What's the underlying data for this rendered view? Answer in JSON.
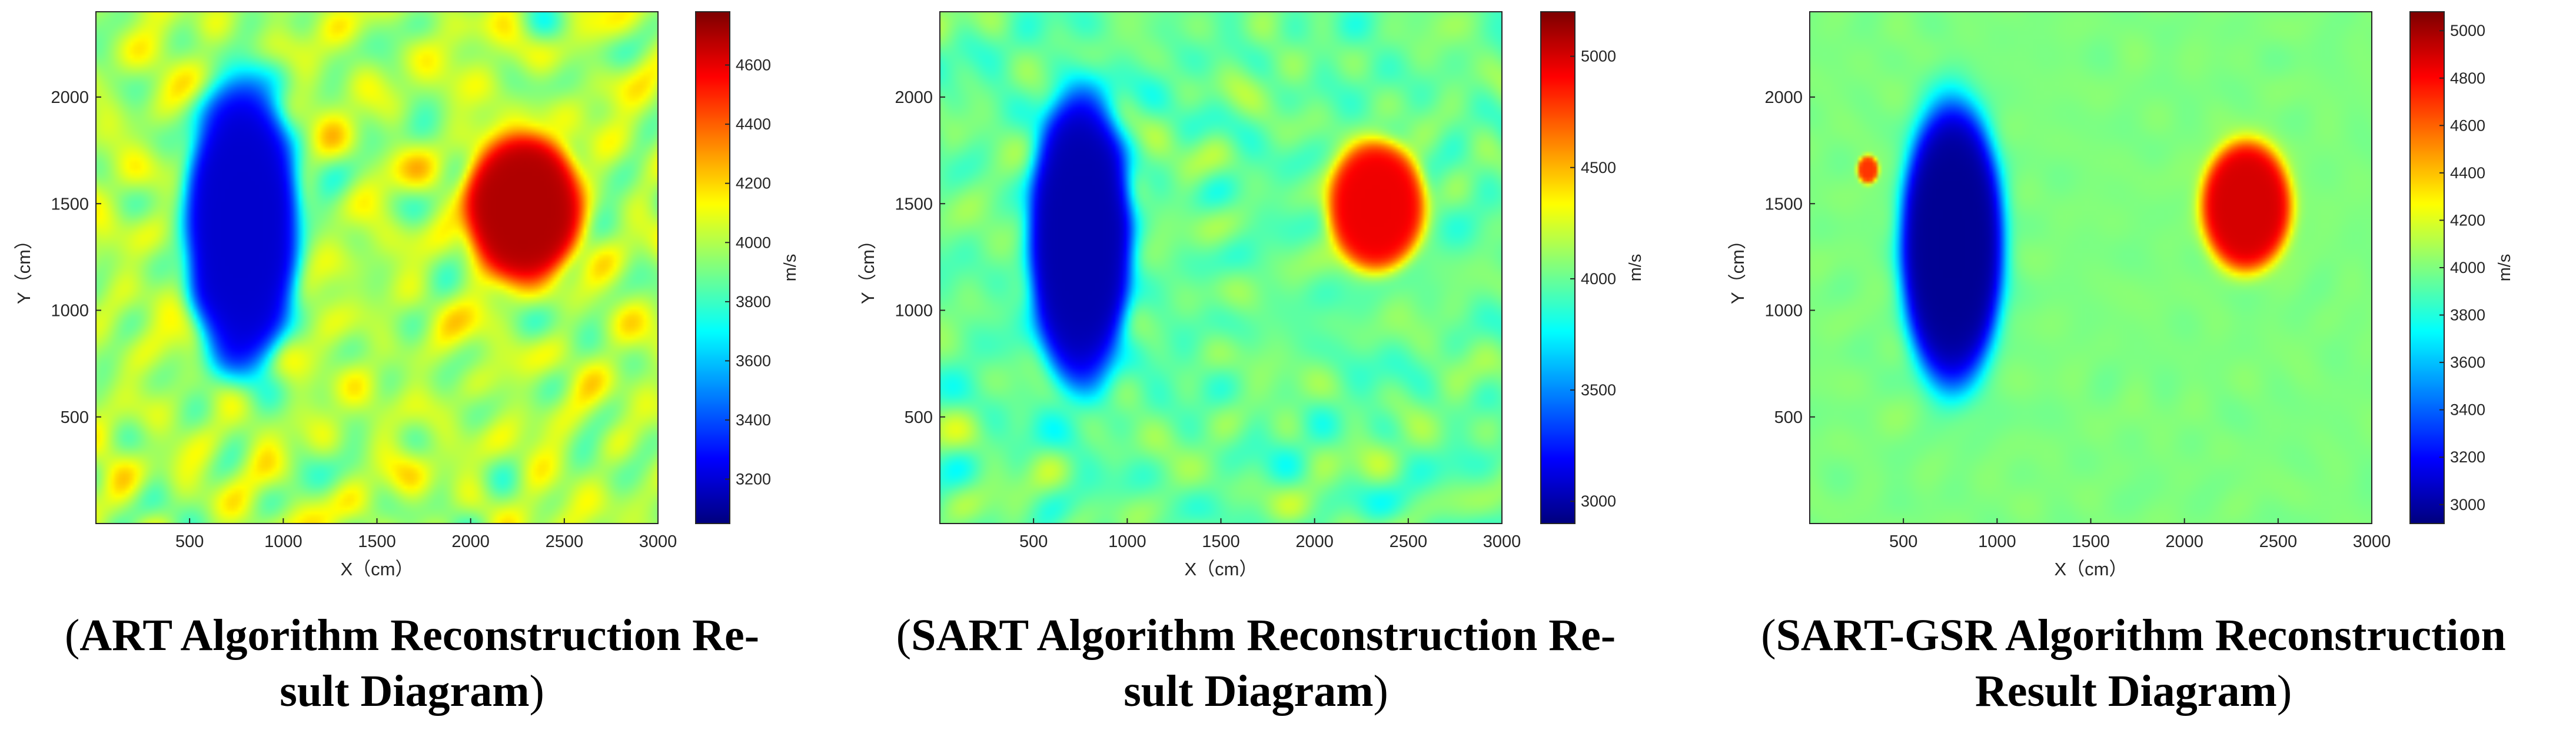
{
  "chart_data": [
    {
      "type": "heatmap",
      "caption": [
        "(ART Algorithm Reconstruction Re-",
        "sult Diagram)"
      ],
      "xlabel": "X（cm）",
      "ylabel": "Y（cm）",
      "xlim": [
        0,
        3000
      ],
      "ylim": [
        0,
        2400
      ],
      "xticks": [
        500,
        1000,
        1500,
        2000,
        2500,
        3000
      ],
      "yticks": [
        500,
        1000,
        1500,
        2000
      ],
      "colorbar": {
        "unit": "m/s",
        "range": [
          3050,
          4780
        ],
        "ticks": [
          3200,
          3400,
          3600,
          3800,
          4000,
          4200,
          4400,
          4600
        ]
      },
      "background": 4000,
      "noise": 260,
      "features": [
        {
          "label": "low-velocity anomaly",
          "cx": 780,
          "cy": 1400,
          "rx": 330,
          "ry": 760,
          "value": 3180
        },
        {
          "label": "high-velocity anomaly",
          "cx": 2280,
          "cy": 1480,
          "rx": 340,
          "ry": 380,
          "value": 4700
        }
      ]
    },
    {
      "type": "heatmap",
      "caption": [
        "(SART Algorithm Reconstruction Re-",
        "sult Diagram)"
      ],
      "xlabel": "X（cm）",
      "ylabel": "Y（cm）",
      "xlim": [
        0,
        3000
      ],
      "ylim": [
        0,
        2400
      ],
      "xticks": [
        500,
        1000,
        1500,
        2000,
        2500,
        3000
      ],
      "yticks": [
        500,
        1000,
        1500,
        2000
      ],
      "colorbar": {
        "unit": "m/s",
        "range": [
          2900,
          5200
        ],
        "ticks": [
          3000,
          3500,
          4000,
          4500,
          5000
        ]
      },
      "background": 4000,
      "noise": 230,
      "features": [
        {
          "label": "low-velocity anomaly",
          "cx": 750,
          "cy": 1340,
          "rx": 300,
          "ry": 760,
          "value": 3000
        },
        {
          "label": "high-velocity anomaly",
          "cx": 2330,
          "cy": 1490,
          "rx": 280,
          "ry": 330,
          "value": 4950
        }
      ]
    },
    {
      "type": "heatmap",
      "caption": [
        "(SART-GSR Algorithm Reconstruction",
        "Result Diagram)"
      ],
      "xlabel": "X（cm）",
      "ylabel": "Y（cm）",
      "xlim": [
        0,
        3000
      ],
      "ylim": [
        0,
        2400
      ],
      "xticks": [
        500,
        1000,
        1500,
        2000,
        2500,
        3000
      ],
      "yticks": [
        500,
        1000,
        1500,
        2000
      ],
      "colorbar": {
        "unit": "m/s",
        "range": [
          2920,
          5080
        ],
        "ticks": [
          3000,
          3200,
          3400,
          3600,
          3800,
          4000,
          4200,
          4400,
          4600,
          4800,
          5000
        ]
      },
      "background": 4000,
      "noise": 40,
      "features": [
        {
          "label": "low-velocity anomaly",
          "cx": 760,
          "cy": 1310,
          "rx": 300,
          "ry": 730,
          "value": 2960
        },
        {
          "label": "high-velocity anomaly",
          "cx": 2330,
          "cy": 1490,
          "rx": 260,
          "ry": 330,
          "value": 4900
        },
        {
          "label": "small high spot",
          "cx": 310,
          "cy": 1660,
          "rx": 60,
          "ry": 70,
          "value": 4700
        }
      ]
    }
  ]
}
